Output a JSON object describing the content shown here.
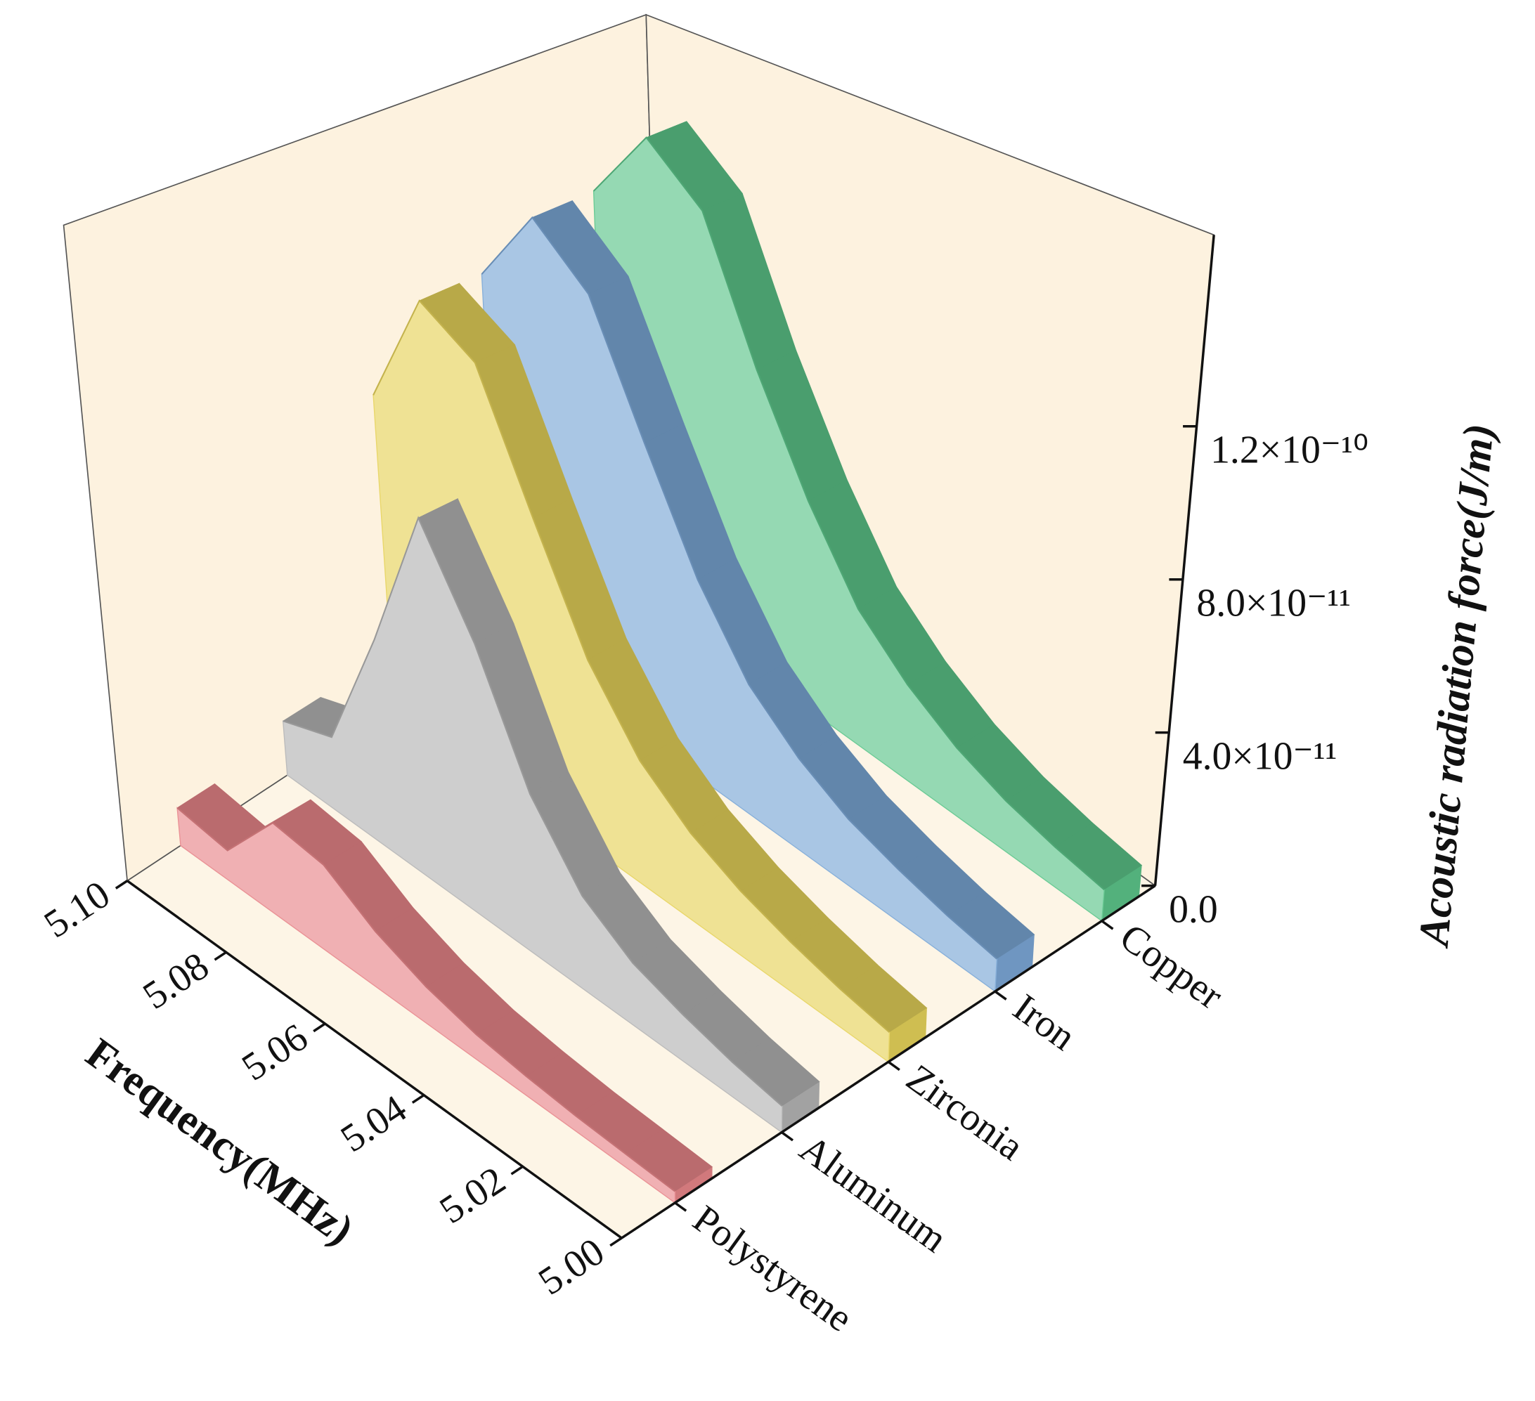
{
  "chart_data": {
    "type": "waterfall3d",
    "x_label": "Frequency(MHz)",
    "y_label": "Acoustic radiation force(J/m)",
    "categories": [
      "Polystyrene",
      "Aluminum",
      "Zirconia",
      "Iron",
      "Copper"
    ],
    "x": [
      5,
      5.01,
      5.02,
      5.03,
      5.04,
      5.05,
      5.06,
      5.07,
      5.08,
      5.09,
      5.1
    ],
    "series": [
      {
        "name": "Polystyrene",
        "color": "#e8868a",
        "values": [
          2.5e-12,
          3e-12,
          3.5e-12,
          4.5e-12,
          6e-12,
          9e-12,
          1.4e-11,
          2.2e-11,
          2.4e-11,
          8e-12,
          1e-11
        ]
      },
      {
        "name": "Aluminum",
        "color": "#b4b4b4",
        "values": [
          6e-12,
          8e-12,
          1.1e-11,
          1.5e-11,
          2.3e-11,
          4e-11,
          7e-11,
          9.5e-11,
          5.5e-11,
          2e-11,
          1.5e-11
        ]
      },
      {
        "name": "Zirconia",
        "color": "#e6d35a",
        "values": [
          7e-12,
          9e-12,
          1.2e-11,
          1.6e-11,
          2.2e-11,
          3.2e-11,
          5e-11,
          8e-11,
          1.15e-10,
          1.25e-10,
          9e-11
        ]
      },
      {
        "name": "Iron",
        "color": "#7ba7d6",
        "values": [
          8e-12,
          1e-11,
          1.3e-11,
          1.7e-11,
          2.4e-11,
          3.5e-11,
          5.5e-11,
          8.5e-11,
          1.2e-10,
          1.35e-10,
          1.1e-10
        ]
      },
      {
        "name": "Copper",
        "color": "#5cc58a",
        "values": [
          8e-12,
          1e-11,
          1.3e-11,
          1.8e-11,
          2.6e-11,
          3.8e-11,
          6e-11,
          9e-11,
          1.3e-10,
          1.45e-10,
          1.2e-10
        ]
      }
    ],
    "xlim": [
      5.1,
      5
    ],
    "xticks": [
      {
        "value": 5,
        "label": "5.00"
      },
      5.02,
      5.04,
      5.06,
      5.08,
      {
        "value": 5.1,
        "label": "5.10"
      }
    ],
    "ylim": [
      0,
      1.7e-10
    ],
    "yticks": [
      {
        "value": 0,
        "label": "0.0"
      },
      {
        "value": 4e-11,
        "label": "4.0×10⁻¹¹"
      },
      {
        "value": 8e-11,
        "label": "8.0×10⁻¹¹"
      },
      {
        "value": 1.2e-10,
        "label": "1.2×10⁻¹⁰"
      }
    ]
  }
}
